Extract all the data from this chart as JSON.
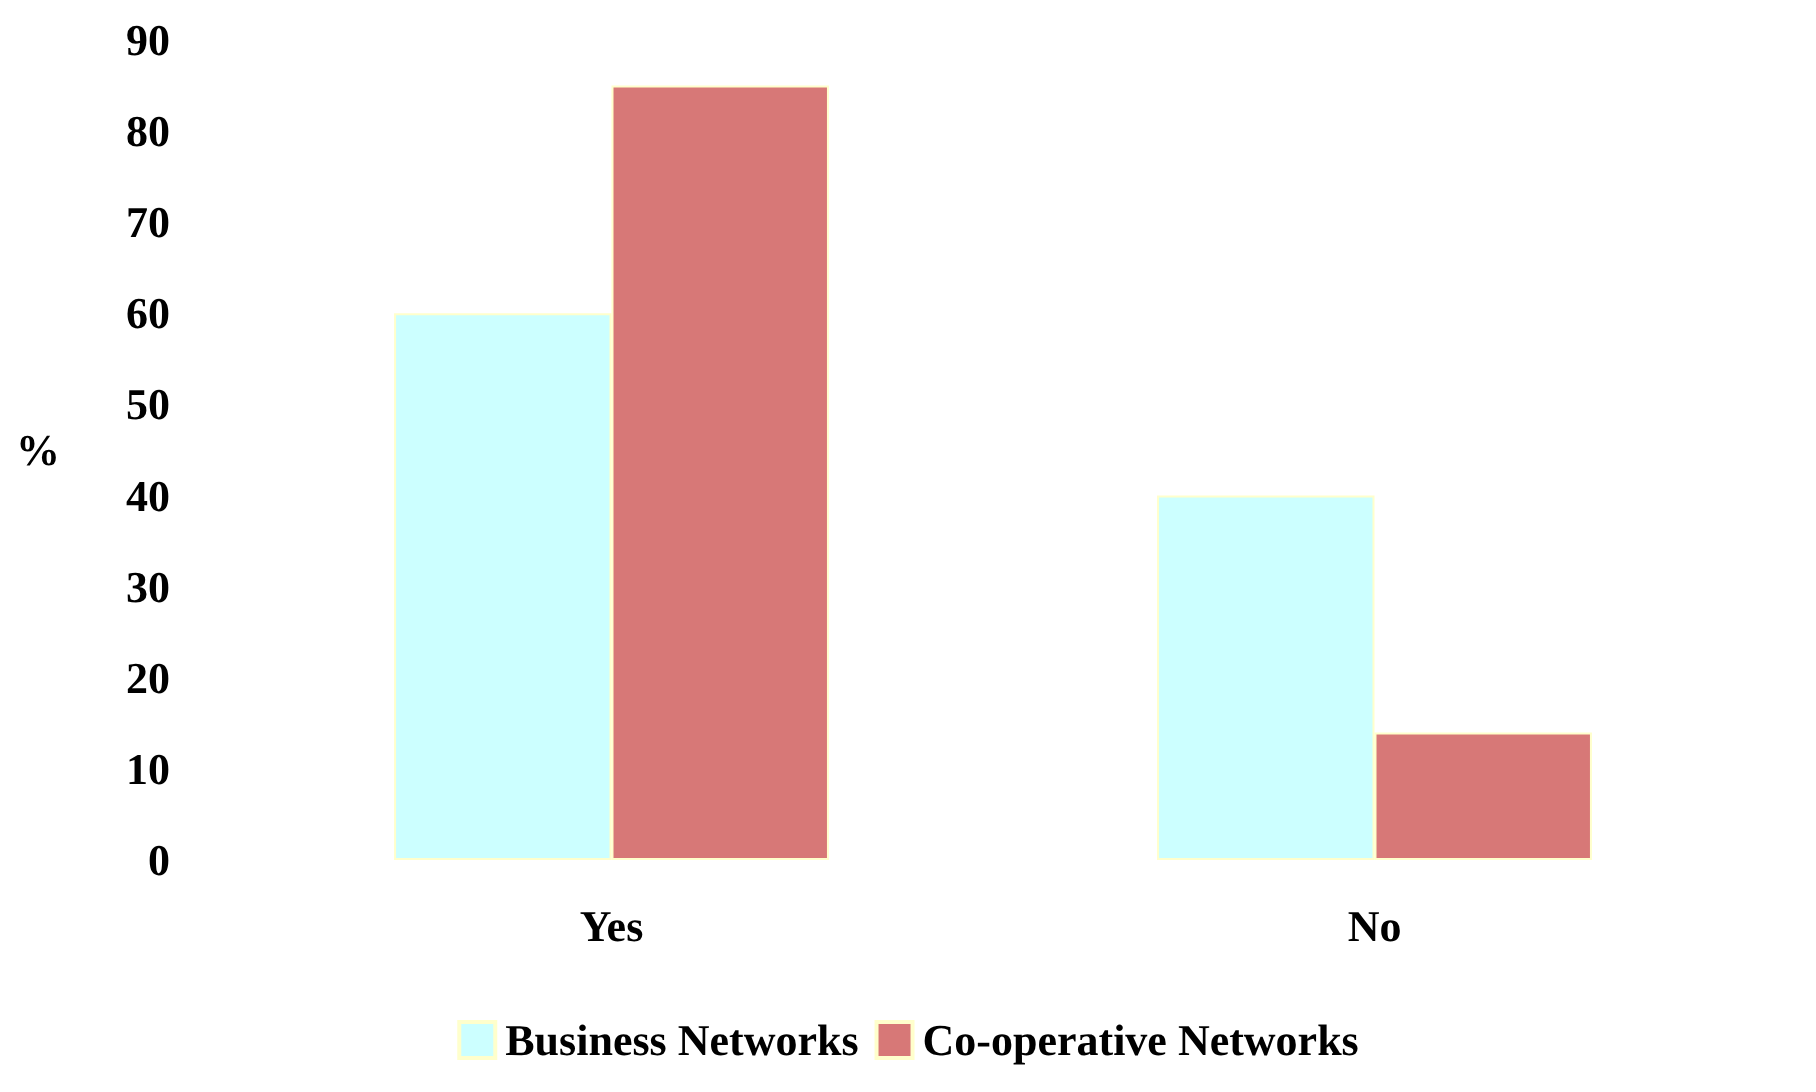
{
  "chart_data": {
    "type": "bar",
    "ylabel": "%",
    "categories": [
      "Yes",
      "No"
    ],
    "series": [
      {
        "name": "Business Networks",
        "color": "#ccffff",
        "values": [
          60,
          40
        ]
      },
      {
        "name": "Co-operative Networks",
        "color": "#d77877",
        "values": [
          85,
          14
        ]
      }
    ],
    "ylim": [
      0,
      90
    ],
    "yticks": [
      0,
      10,
      20,
      30,
      40,
      50,
      60,
      70,
      80,
      90
    ],
    "grid": false,
    "legend": "bottom"
  }
}
